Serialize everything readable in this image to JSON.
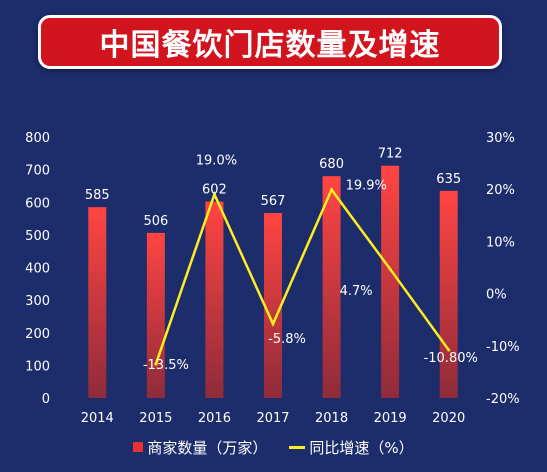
{
  "title": "中国餐饮门店数量及增速",
  "colors": {
    "background": "#1d2c6b",
    "banner": "#d1141e",
    "bar_top": "#ff4542",
    "bar_bottom": "#8f2b3a",
    "line": "#ffee1f",
    "text": "#ffffff"
  },
  "chart_data": {
    "type": "bar+line",
    "categories": [
      "2014",
      "2015",
      "2016",
      "2017",
      "2018",
      "2019",
      "2020"
    ],
    "series": [
      {
        "name": "商家数量（万家）",
        "type": "bar",
        "axis": "left",
        "values": [
          585,
          506,
          602,
          567,
          680,
          712,
          635
        ],
        "labels": [
          "585",
          "506",
          "602",
          "567",
          "680",
          "712",
          "635"
        ]
      },
      {
        "name": "同比增速（%）",
        "type": "line",
        "axis": "right",
        "values": [
          null,
          -13.5,
          19.0,
          -5.8,
          19.9,
          4.7,
          -10.8
        ],
        "labels": [
          "",
          "-13.5%",
          "19.0%",
          "-5.8%",
          "19.9%",
          "4.7%",
          "-10.80%"
        ]
      }
    ],
    "y_left": {
      "ylim": [
        0,
        800
      ],
      "ticks": [
        "0",
        "100",
        "200",
        "300",
        "400",
        "500",
        "600",
        "700",
        "800"
      ]
    },
    "y_right": {
      "ylim": [
        -20,
        30
      ],
      "ticks": [
        "-20%",
        "-10%",
        "0%",
        "10%",
        "20%",
        "30%"
      ]
    },
    "grid": false,
    "legend_position": "bottom"
  },
  "legend": {
    "bar_label": "商家数量（万家）",
    "line_label": "同比增速（%）"
  }
}
